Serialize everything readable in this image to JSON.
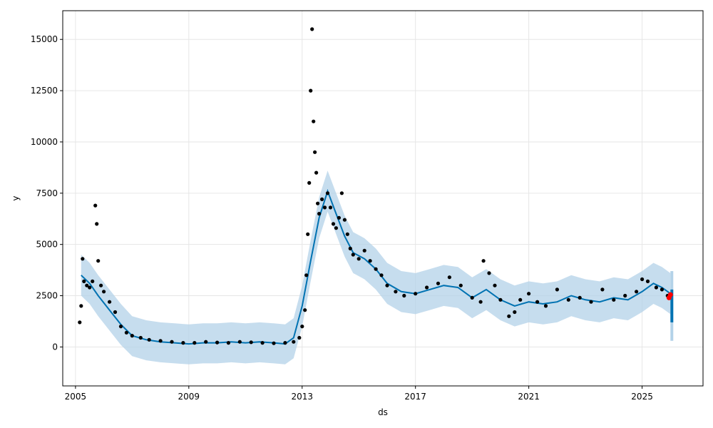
{
  "chart_data": {
    "type": "line",
    "xlabel": "ds",
    "ylabel": "y",
    "xlim": [
      2004.55,
      2027.15
    ],
    "ylim": [
      -1900,
      16400
    ],
    "x_ticks": [
      {
        "value": 2005,
        "label": "2005"
      },
      {
        "value": 2009,
        "label": "2009"
      },
      {
        "value": 2013,
        "label": "2013"
      },
      {
        "value": 2017,
        "label": "2017"
      },
      {
        "value": 2021,
        "label": "2021"
      },
      {
        "value": 2025,
        "label": "2025"
      }
    ],
    "y_ticks": [
      {
        "value": 0,
        "label": "0"
      },
      {
        "value": 2500,
        "label": "2500"
      },
      {
        "value": 5000,
        "label": "5000"
      },
      {
        "value": 7500,
        "label": "7500"
      },
      {
        "value": 10000,
        "label": "10000"
      },
      {
        "value": 12500,
        "label": "12500"
      },
      {
        "value": 15000,
        "label": "15000"
      }
    ],
    "grid": true,
    "colors": {
      "observed": "#000000",
      "forecast": "#0072b2",
      "uncertainty": "#b3d2e8",
      "highlight": "#ff0000"
    },
    "forecast_series": {
      "x": [
        2005.2,
        2005.5,
        2005.8,
        2006.2,
        2006.6,
        2007.0,
        2007.5,
        2008.0,
        2008.5,
        2009.0,
        2009.5,
        2010.0,
        2010.5,
        2011.0,
        2011.5,
        2012.0,
        2012.4,
        2012.7,
        2013.0,
        2013.3,
        2013.6,
        2013.9,
        2014.2,
        2014.5,
        2014.8,
        2015.2,
        2015.6,
        2016.0,
        2016.5,
        2017.0,
        2017.5,
        2018.0,
        2018.5,
        2019.0,
        2019.5,
        2020.0,
        2020.5,
        2021.0,
        2021.5,
        2022.0,
        2022.5,
        2023.0,
        2023.5,
        2024.0,
        2024.5,
        2025.0,
        2025.4,
        2025.7,
        2026.0
      ],
      "y": [
        3500,
        3100,
        2500,
        1800,
        1100,
        550,
        350,
        250,
        200,
        150,
        200,
        200,
        250,
        200,
        250,
        200,
        150,
        450,
        2000,
        4200,
        6300,
        7600,
        6500,
        5400,
        4600,
        4300,
        3800,
        3100,
        2700,
        2600,
        2800,
        3000,
        2900,
        2400,
        2800,
        2300,
        2000,
        2200,
        2100,
        2200,
        2500,
        2300,
        2200,
        2400,
        2300,
        2700,
        3100,
        2900,
        2600
      ]
    },
    "uncertainty_band": {
      "x": [
        2005.2,
        2005.5,
        2005.8,
        2006.2,
        2006.6,
        2007.0,
        2007.5,
        2008.0,
        2008.5,
        2009.0,
        2009.5,
        2010.0,
        2010.5,
        2011.0,
        2011.5,
        2012.0,
        2012.4,
        2012.7,
        2013.0,
        2013.3,
        2013.6,
        2013.9,
        2014.2,
        2014.5,
        2014.8,
        2015.2,
        2015.6,
        2016.0,
        2016.5,
        2017.0,
        2017.5,
        2018.0,
        2018.5,
        2019.0,
        2019.5,
        2020.0,
        2020.5,
        2021.0,
        2021.5,
        2022.0,
        2022.5,
        2023.0,
        2023.5,
        2024.0,
        2024.5,
        2025.0,
        2025.4,
        2025.7,
        2026.0
      ],
      "upper": [
        4500,
        4100,
        3500,
        2800,
        2100,
        1500,
        1300,
        1200,
        1150,
        1100,
        1150,
        1150,
        1200,
        1150,
        1200,
        1150,
        1100,
        1400,
        3000,
        5200,
        7300,
        8600,
        7500,
        6400,
        5600,
        5300,
        4800,
        4100,
        3700,
        3600,
        3800,
        4000,
        3900,
        3400,
        3800,
        3300,
        3000,
        3200,
        3100,
        3200,
        3500,
        3300,
        3200,
        3400,
        3300,
        3700,
        4100,
        3900,
        3600
      ],
      "lower": [
        2500,
        2100,
        1500,
        800,
        100,
        -450,
        -650,
        -750,
        -800,
        -850,
        -800,
        -800,
        -750,
        -800,
        -750,
        -800,
        -850,
        -550,
        1000,
        3200,
        5300,
        6600,
        5500,
        4400,
        3600,
        3300,
        2800,
        2100,
        1700,
        1600,
        1800,
        2000,
        1900,
        1400,
        1800,
        1300,
        1000,
        1200,
        1100,
        1200,
        1500,
        1300,
        1200,
        1400,
        1300,
        1700,
        2100,
        1900,
        1600
      ]
    },
    "forecast_extension": {
      "x": [
        2026.0,
        2026.1
      ],
      "upper": [
        3700,
        3700
      ],
      "lower": [
        300,
        300
      ],
      "yhat_upper": [
        2800,
        2800
      ],
      "yhat_lower": [
        1200,
        1200
      ]
    },
    "observed_points": {
      "x": [
        2005.15,
        2005.2,
        2005.25,
        2005.3,
        2005.4,
        2005.5,
        2005.6,
        2005.7,
        2005.75,
        2005.8,
        2005.9,
        2006.0,
        2006.2,
        2006.4,
        2006.6,
        2006.8,
        2007.0,
        2007.3,
        2007.6,
        2008.0,
        2008.4,
        2008.8,
        2009.2,
        2009.6,
        2010.0,
        2010.4,
        2010.8,
        2011.2,
        2011.6,
        2012.0,
        2012.4,
        2012.7,
        2012.9,
        2013.0,
        2013.1,
        2013.15,
        2013.2,
        2013.25,
        2013.3,
        2013.35,
        2013.4,
        2013.45,
        2013.5,
        2013.55,
        2013.6,
        2013.7,
        2013.8,
        2013.9,
        2014.0,
        2014.1,
        2014.2,
        2014.3,
        2014.4,
        2014.5,
        2014.6,
        2014.7,
        2014.8,
        2015.0,
        2015.2,
        2015.4,
        2015.6,
        2015.8,
        2016.0,
        2016.3,
        2016.6,
        2017.0,
        2017.4,
        2017.8,
        2018.2,
        2018.6,
        2019.0,
        2019.3,
        2019.4,
        2019.6,
        2019.8,
        2020.0,
        2020.3,
        2020.5,
        2020.7,
        2021.0,
        2021.3,
        2021.6,
        2022.0,
        2022.4,
        2022.8,
        2023.2,
        2023.6,
        2024.0,
        2024.4,
        2024.8,
        2025.0,
        2025.2,
        2025.5,
        2025.7,
        2025.9
      ],
      "y": [
        1200,
        2000,
        4300,
        3200,
        3000,
        2900,
        3200,
        6900,
        6000,
        4200,
        3000,
        2700,
        2200,
        1700,
        1000,
        700,
        550,
        450,
        350,
        300,
        250,
        200,
        200,
        250,
        220,
        200,
        250,
        230,
        200,
        180,
        200,
        250,
        450,
        1000,
        1800,
        3500,
        5500,
        8000,
        12500,
        15500,
        11000,
        9500,
        8500,
        7000,
        6500,
        7200,
        6800,
        7500,
        6800,
        6000,
        5800,
        6300,
        7500,
        6200,
        5500,
        4800,
        4500,
        4300,
        4700,
        4200,
        3800,
        3500,
        3000,
        2700,
        2500,
        2600,
        2900,
        3100,
        3400,
        3000,
        2400,
        2200,
        4200,
        3600,
        3000,
        2300,
        1500,
        1700,
        2300,
        2600,
        2200,
        2000,
        2800,
        2300,
        2400,
        2200,
        2800,
        2300,
        2500,
        2700,
        3300,
        3200,
        2900,
        2800,
        2500
      ]
    },
    "highlight_points": {
      "x": [
        2025.95,
        2026.0
      ],
      "y": [
        2400,
        2550
      ]
    }
  }
}
